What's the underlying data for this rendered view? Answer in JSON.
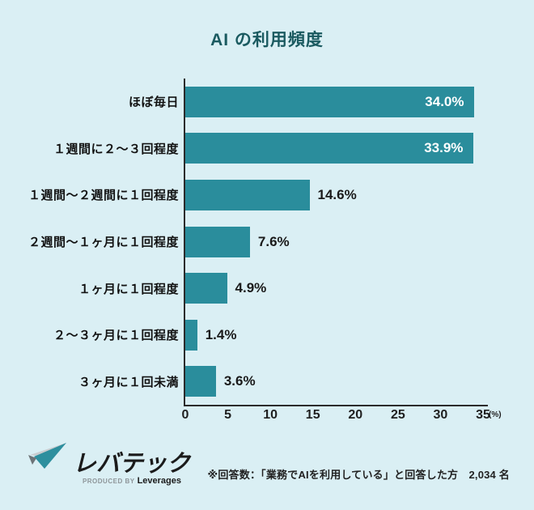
{
  "title": "AI の利用頻度",
  "chart_data": {
    "type": "bar",
    "orientation": "horizontal",
    "title": "AI の利用頻度",
    "categories": [
      "ほぼ毎日",
      "１週間に２～３回程度",
      "１週間～２週間に１回程度",
      "２週間～１ヶ月に１回程度",
      "１ヶ月に１回程度",
      "２～３ヶ月に１回程度",
      "３ヶ月に１回未満"
    ],
    "values": [
      34.0,
      33.9,
      14.6,
      7.6,
      4.9,
      1.4,
      3.6
    ],
    "value_labels": [
      "34.0%",
      "33.9%",
      "14.6%",
      "7.6%",
      "4.9%",
      "1.4%",
      "3.6%"
    ],
    "xlim": [
      0,
      35
    ],
    "ticks": [
      "0",
      "5",
      "10",
      "15",
      "20",
      "25",
      "30",
      "35"
    ],
    "x_unit": "(%)",
    "xlabel": "",
    "ylabel": "",
    "grid": false,
    "legend": "none",
    "bar_color": "#2a8d9c"
  },
  "colors": {
    "background": "#daeff4",
    "bar": "#2a8d9c",
    "title": "#1a5a60",
    "axis": "#2b2b2b",
    "value_inside": "#ffffff",
    "value_outside": "#1a1a1a"
  },
  "footer": {
    "note": "※回答数：「業務でAIを利用している」と回答した方　2,034 名",
    "logo": {
      "brand": "レバテック",
      "produced_by": "PRODUCED BY",
      "company": "Leverages"
    }
  }
}
